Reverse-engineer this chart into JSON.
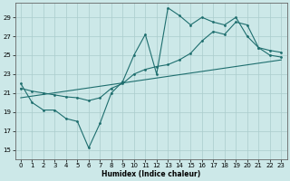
{
  "xlabel": "Humidex (Indice chaleur)",
  "xlim": [
    -0.5,
    23.5
  ],
  "ylim": [
    14.0,
    30.5
  ],
  "yticks": [
    15,
    17,
    19,
    21,
    23,
    25,
    27,
    29
  ],
  "xticks": [
    0,
    1,
    2,
    3,
    4,
    5,
    6,
    7,
    8,
    9,
    10,
    11,
    12,
    13,
    14,
    15,
    16,
    17,
    18,
    19,
    20,
    21,
    22,
    23
  ],
  "bg_color": "#cce8e8",
  "grid_color": "#aacccc",
  "line_color": "#1e6e6e",
  "line1_x": [
    0,
    1,
    2,
    3,
    4,
    5,
    6,
    7,
    8,
    9,
    10,
    11,
    12,
    13,
    14,
    15,
    16,
    17,
    18,
    19,
    20,
    21,
    22,
    23
  ],
  "line1_y": [
    22.0,
    20.0,
    19.2,
    19.2,
    18.3,
    18.0,
    15.2,
    17.8,
    21.0,
    22.2,
    25.0,
    27.2,
    23.0,
    30.0,
    29.2,
    28.2,
    29.0,
    28.5,
    28.2,
    29.0,
    27.0,
    25.8,
    25.0,
    24.8
  ],
  "line2_x": [
    0,
    1,
    2,
    3,
    4,
    5,
    6,
    7,
    8,
    9,
    10,
    11,
    12,
    13,
    14,
    15,
    16,
    17,
    18,
    19,
    20,
    21,
    22,
    23
  ],
  "line2_y": [
    21.5,
    21.2,
    21.0,
    20.8,
    20.6,
    20.5,
    20.2,
    20.5,
    21.5,
    22.0,
    23.0,
    23.5,
    23.8,
    24.0,
    24.5,
    25.2,
    26.5,
    27.5,
    27.2,
    28.5,
    28.2,
    25.8,
    25.5,
    25.3
  ],
  "line3_x": [
    0,
    23
  ],
  "line3_y": [
    20.5,
    24.5
  ],
  "figsize": [
    3.2,
    2.0
  ],
  "dpi": 100
}
